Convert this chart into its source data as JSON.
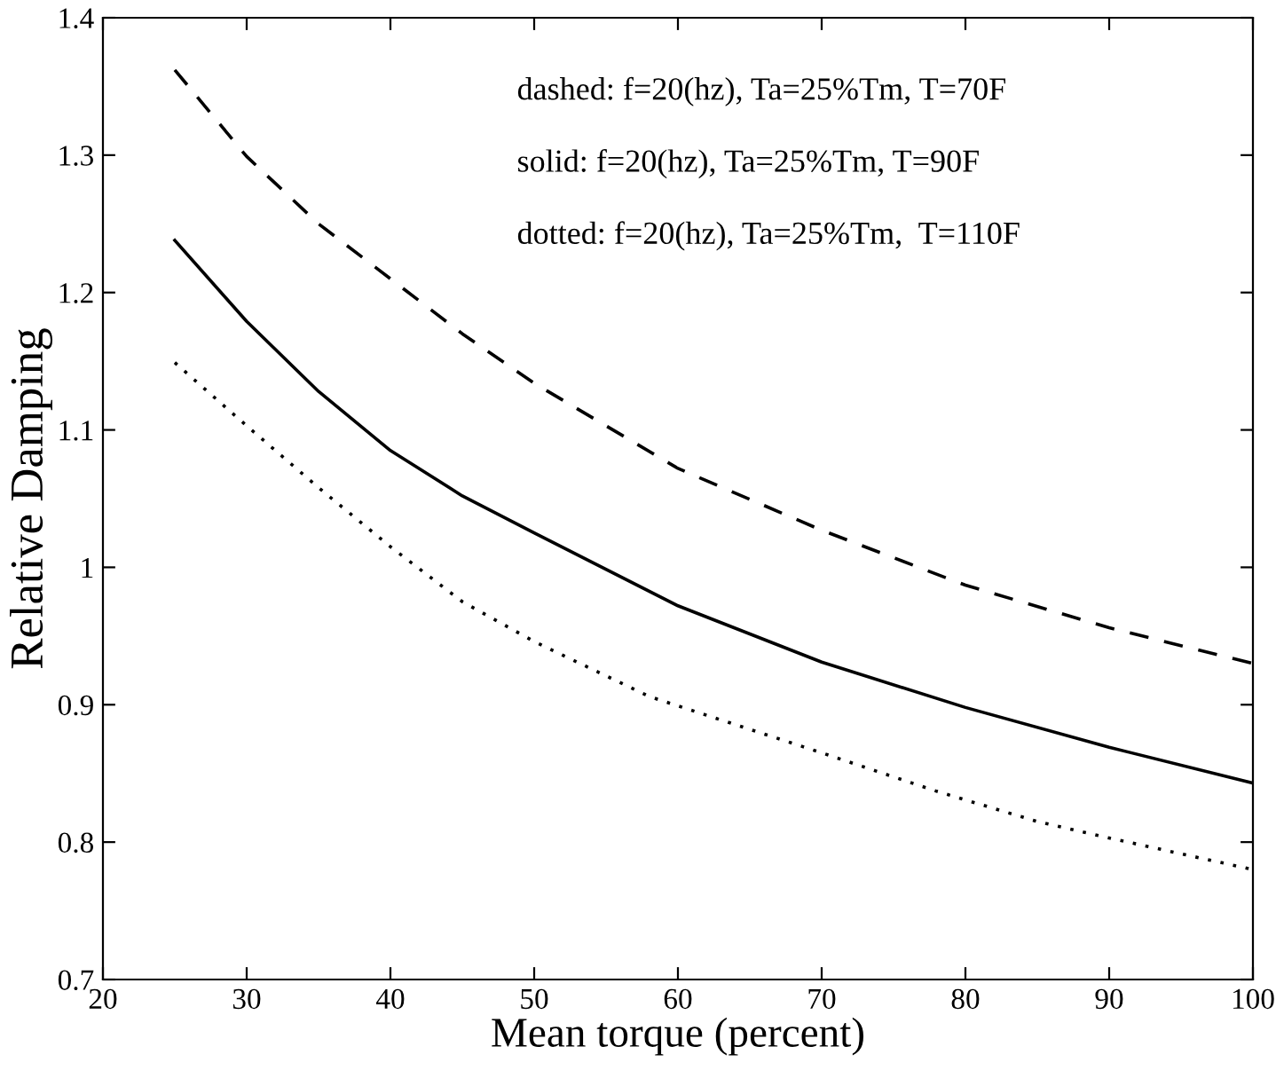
{
  "chart_data": {
    "type": "line",
    "xlabel": "Mean torque (percent)",
    "ylabel": "Relative Damping",
    "xlim": [
      20,
      100
    ],
    "xticks": [
      20,
      30,
      40,
      50,
      60,
      70,
      80,
      90,
      100
    ],
    "ylim": [
      0.7,
      1.4
    ],
    "yticks": [
      0.7,
      0.8,
      0.9,
      1,
      1.1,
      1.2,
      1.3,
      1.4
    ],
    "grid": false,
    "legend": false,
    "series": [
      {
        "color": "#000000",
        "line_style": "dashed",
        "x": [
          25,
          30,
          35,
          40,
          45,
          50,
          60,
          70,
          80,
          90,
          100
        ],
        "values": [
          1.362,
          1.299,
          1.25,
          1.21,
          1.17,
          1.134,
          1.072,
          1.027,
          0.987,
          0.956,
          0.93
        ]
      },
      {
        "color": "#000000",
        "line_style": "solid",
        "x": [
          25,
          30,
          35,
          40,
          45,
          50,
          60,
          70,
          80,
          90,
          100
        ],
        "values": [
          1.238,
          1.179,
          1.128,
          1.085,
          1.052,
          1.025,
          0.972,
          0.931,
          0.898,
          0.869,
          0.843
        ]
      },
      {
        "color": "#000000",
        "line_style": "dotted",
        "x": [
          25,
          30,
          35,
          40,
          45,
          50,
          58,
          70,
          78,
          85,
          90,
          100
        ],
        "values": [
          1.149,
          1.103,
          1.058,
          1.015,
          0.975,
          0.946,
          0.906,
          0.865,
          0.837,
          0.815,
          0.803,
          0.78
        ]
      }
    ],
    "annotations": [
      "dashed: f=20(hz), Ta=25%Tm, T=70F",
      "solid: f=20(hz), Ta=25%Tm, T=90F",
      "dotted: f=20(hz), Ta=25%Tm,  T=110F"
    ]
  }
}
